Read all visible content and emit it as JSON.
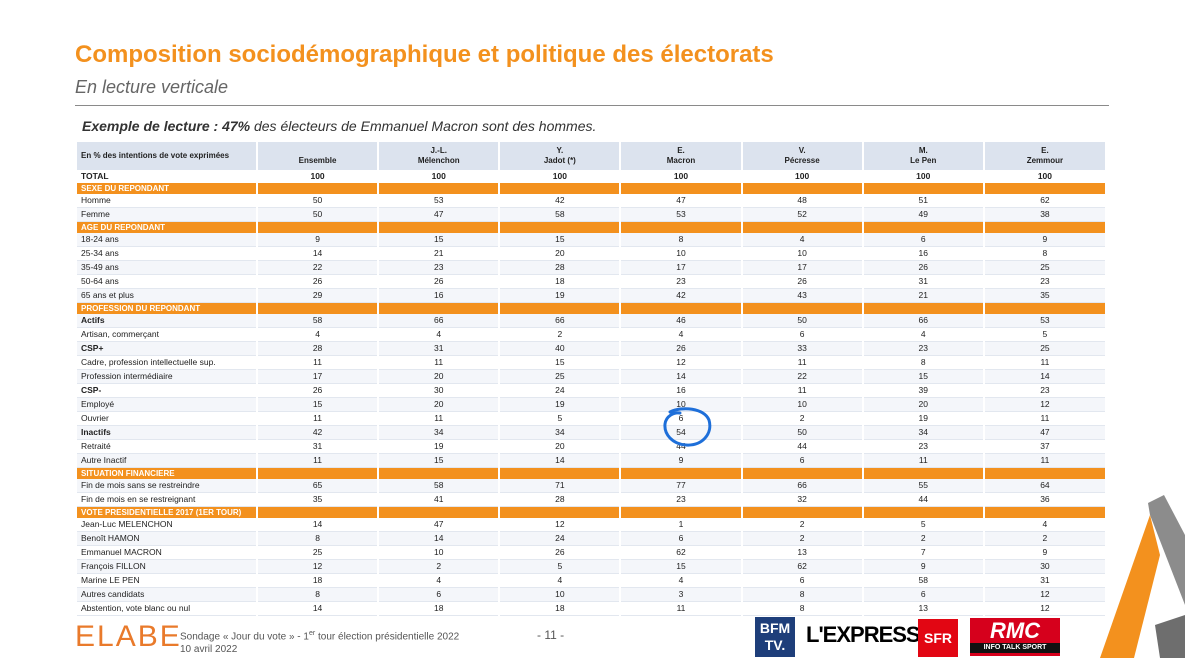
{
  "title": "Composition sociodémographique et politique des électorats",
  "subtitle": "En lecture verticale",
  "reading": {
    "label": "Exemple de lecture :",
    "value": "47%",
    "text": " des électeurs de Emmanuel Macron sont des hommes."
  },
  "table": {
    "header_label": "En % des intentions de vote exprimées",
    "columns": [
      {
        "line1": "",
        "line2": "Ensemble"
      },
      {
        "line1": "J.-L.",
        "line2": "Mélenchon"
      },
      {
        "line1": "Y.",
        "line2": "Jadot (*)"
      },
      {
        "line1": "E.",
        "line2": "Macron"
      },
      {
        "line1": "V.",
        "line2": "Pécresse"
      },
      {
        "line1": "M.",
        "line2": "Le Pen"
      },
      {
        "line1": "E.",
        "line2": "Zemmour"
      }
    ],
    "total": {
      "label": "TOTAL",
      "values": [
        "100",
        "100",
        "100",
        "100",
        "100",
        "100",
        "100"
      ]
    },
    "sections": [
      {
        "title": "SEXE DU REPONDANT",
        "rows": [
          {
            "label": "Homme",
            "indent": 1,
            "bold": false,
            "values": [
              "50",
              "53",
              "42",
              "47",
              "48",
              "51",
              "62"
            ]
          },
          {
            "label": "Femme",
            "indent": 1,
            "bold": false,
            "values": [
              "50",
              "47",
              "58",
              "53",
              "52",
              "49",
              "38"
            ]
          }
        ]
      },
      {
        "title": "AGE DU REPONDANT",
        "rows": [
          {
            "label": "18-24 ans",
            "indent": 1,
            "bold": false,
            "values": [
              "9",
              "15",
              "15",
              "8",
              "4",
              "6",
              "9"
            ]
          },
          {
            "label": "25-34 ans",
            "indent": 1,
            "bold": false,
            "values": [
              "14",
              "21",
              "20",
              "10",
              "10",
              "16",
              "8"
            ]
          },
          {
            "label": "35-49 ans",
            "indent": 1,
            "bold": false,
            "values": [
              "22",
              "23",
              "28",
              "17",
              "17",
              "26",
              "25"
            ]
          },
          {
            "label": "50-64 ans",
            "indent": 1,
            "bold": false,
            "values": [
              "26",
              "26",
              "18",
              "23",
              "26",
              "31",
              "23"
            ]
          },
          {
            "label": "65 ans et plus",
            "indent": 1,
            "bold": false,
            "values": [
              "29",
              "16",
              "19",
              "42",
              "43",
              "21",
              "35"
            ]
          }
        ]
      },
      {
        "title": "PROFESSION DU REPONDANT",
        "rows": [
          {
            "label": "Actifs",
            "indent": 1,
            "bold": true,
            "values": [
              "58",
              "66",
              "66",
              "46",
              "50",
              "66",
              "53"
            ]
          },
          {
            "label": "Artisan, commerçant",
            "indent": 1,
            "bold": false,
            "values": [
              "4",
              "4",
              "2",
              "4",
              "6",
              "4",
              "5"
            ]
          },
          {
            "label": "CSP+",
            "indent": 1,
            "bold": true,
            "values": [
              "28",
              "31",
              "40",
              "26",
              "33",
              "23",
              "25"
            ]
          },
          {
            "label": "Cadre, profession intellectuelle sup.",
            "indent": 2,
            "bold": false,
            "values": [
              "11",
              "11",
              "15",
              "12",
              "11",
              "8",
              "11"
            ]
          },
          {
            "label": "Profession intermédiaire",
            "indent": 2,
            "bold": false,
            "values": [
              "17",
              "20",
              "25",
              "14",
              "22",
              "15",
              "14"
            ]
          },
          {
            "label": "CSP-",
            "indent": 1,
            "bold": true,
            "values": [
              "26",
              "30",
              "24",
              "16",
              "11",
              "39",
              "23"
            ]
          },
          {
            "label": "Employé",
            "indent": 2,
            "bold": false,
            "values": [
              "15",
              "20",
              "19",
              "10",
              "10",
              "20",
              "12"
            ]
          },
          {
            "label": "Ouvrier",
            "indent": 2,
            "bold": false,
            "values": [
              "11",
              "11",
              "5",
              "6",
              "2",
              "19",
              "11"
            ]
          },
          {
            "label": "Inactifs",
            "indent": 1,
            "bold": true,
            "values": [
              "42",
              "34",
              "34",
              "54",
              "50",
              "34",
              "47"
            ]
          },
          {
            "label": "Retraité",
            "indent": 2,
            "bold": false,
            "values": [
              "31",
              "19",
              "20",
              "44",
              "44",
              "23",
              "37"
            ]
          },
          {
            "label": "Autre Inactif",
            "indent": 2,
            "bold": false,
            "values": [
              "11",
              "15",
              "14",
              "9",
              "6",
              "11",
              "11"
            ]
          }
        ]
      },
      {
        "title": "SITUATION FINANCIERE",
        "rows": [
          {
            "label": "Fin de mois sans se restreindre",
            "indent": 1,
            "bold": false,
            "values": [
              "65",
              "58",
              "71",
              "77",
              "66",
              "55",
              "64"
            ]
          },
          {
            "label": "Fin de mois en se restreignant",
            "indent": 1,
            "bold": false,
            "values": [
              "35",
              "41",
              "28",
              "23",
              "32",
              "44",
              "36"
            ]
          }
        ]
      },
      {
        "title": "VOTE PRESIDENTIELLE 2017 (1ER TOUR)",
        "rows": [
          {
            "label": "Jean-Luc MELENCHON",
            "indent": 1,
            "bold": false,
            "values": [
              "14",
              "47",
              "12",
              "1",
              "2",
              "5",
              "4"
            ]
          },
          {
            "label": "Benoît HAMON",
            "indent": 1,
            "bold": false,
            "values": [
              "8",
              "14",
              "24",
              "6",
              "2",
              "2",
              "2"
            ]
          },
          {
            "label": "Emmanuel MACRON",
            "indent": 1,
            "bold": false,
            "values": [
              "25",
              "10",
              "26",
              "62",
              "13",
              "7",
              "9"
            ]
          },
          {
            "label": "François FILLON",
            "indent": 1,
            "bold": false,
            "values": [
              "12",
              "2",
              "5",
              "15",
              "62",
              "9",
              "30"
            ]
          },
          {
            "label": "Marine LE PEN",
            "indent": 1,
            "bold": false,
            "values": [
              "18",
              "4",
              "4",
              "4",
              "6",
              "58",
              "31"
            ]
          },
          {
            "label": "Autres candidats",
            "indent": 1,
            "bold": false,
            "values": [
              "8",
              "6",
              "10",
              "3",
              "8",
              "6",
              "12"
            ]
          },
          {
            "label": "Abstention, vote blanc ou nul",
            "indent": 1,
            "bold": false,
            "values": [
              "14",
              "18",
              "18",
              "11",
              "8",
              "13",
              "12"
            ]
          }
        ]
      }
    ]
  },
  "footer": {
    "logo": "ELABE",
    "line1_pre": "Sondage « Jour du vote » - 1",
    "line1_sup": "er",
    "line1_post": " tour élection présidentielle 2022",
    "line2": "10 avril 2022",
    "page": "- 11 -"
  },
  "partners": {
    "bfm_line1": "BFM",
    "bfm_line2": "TV.",
    "express": "L'EXPRESS",
    "sfr": "SFR",
    "rmc": "RMC",
    "rmc_tagline": "INFO TALK SPORT"
  },
  "colors": {
    "accent": "#F3911E",
    "header_bg": "#DCE3EE",
    "annotation": "#1E6FD9"
  }
}
